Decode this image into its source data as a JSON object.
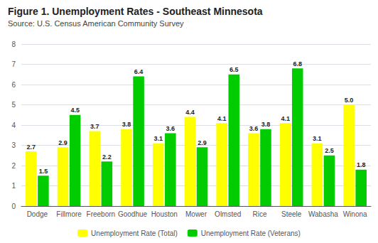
{
  "chart_data": {
    "type": "bar",
    "title": "Figure 1. Unemployment Rates - Southeast Minnesota",
    "subtitle": "Source: U.S. Census American Community Survey",
    "categories": [
      "Dodge",
      "Fillmore",
      "Freeborn",
      "Goodhue",
      "Houston",
      "Mower",
      "Olmsted",
      "Rice",
      "Steele",
      "Wabasha",
      "Winona"
    ],
    "series": [
      {
        "name": "Unemployment Rate (Total)",
        "color": "#FFFF00",
        "values": [
          2.7,
          2.9,
          3.7,
          3.8,
          3.1,
          4.4,
          4.1,
          3.6,
          4.1,
          3.1,
          5.0
        ],
        "value_labels": [
          "2.7",
          "2.9",
          "3.7",
          "3.8",
          "3.1",
          "4.4",
          "4.1",
          "3.6",
          "4.1",
          "3.1",
          "5.0"
        ]
      },
      {
        "name": "Unemployment Rate (Veterans)",
        "color": "#00CC00",
        "values": [
          1.5,
          4.5,
          2.2,
          6.4,
          3.6,
          2.9,
          6.5,
          3.8,
          6.8,
          2.5,
          1.8
        ]
      }
    ],
    "ylim": [
      0,
      8
    ],
    "yticks": [
      0,
      1,
      2,
      3,
      4,
      5,
      6,
      7,
      8
    ],
    "grid": true,
    "legend": "bottom",
    "data_labels": true
  }
}
